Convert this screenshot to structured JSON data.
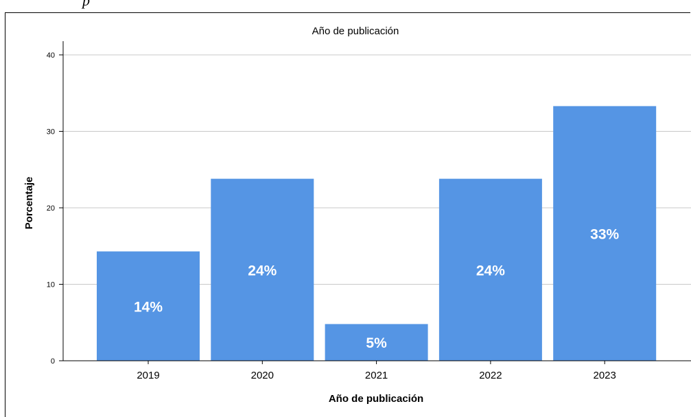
{
  "caption_fragment": "p",
  "chart_data": {
    "type": "bar",
    "title": "Año de publicación",
    "xlabel": "Año de publicación",
    "ylabel": "Porcentaje",
    "categories": [
      "2019",
      "2020",
      "2021",
      "2022",
      "2023"
    ],
    "values": [
      14.3,
      23.8,
      4.8,
      23.8,
      33.3
    ],
    "data_labels": [
      "14%",
      "24%",
      "5%",
      "24%",
      "33%"
    ],
    "ylim": [
      0,
      40
    ],
    "yticks": [
      "0",
      "10",
      "20",
      "30",
      "40"
    ],
    "grid": true,
    "bar_color": "#5595E4"
  }
}
